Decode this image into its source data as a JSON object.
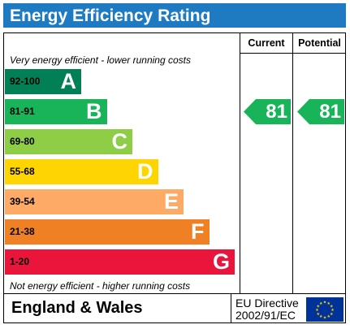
{
  "header": {
    "title": "Energy Efficiency Rating"
  },
  "columns": {
    "current": "Current",
    "potential": "Potential"
  },
  "notes": {
    "top": "Very energy efficient - lower running costs",
    "bottom": "Not energy efficient - higher running costs"
  },
  "footer": {
    "country": "England & Wales",
    "directive_line1": "EU Directive",
    "directive_line2": "2002/91/EC",
    "flag_icon": "eu-flag-icon"
  },
  "chart_data": {
    "type": "bar",
    "title": "Energy Efficiency Rating",
    "bands": [
      {
        "letter": "A",
        "range": "92-100",
        "color": "#008054",
        "text_color": "#000000"
      },
      {
        "letter": "B",
        "range": "81-91",
        "color": "#19b459",
        "text_color": "#000000"
      },
      {
        "letter": "C",
        "range": "69-80",
        "color": "#8dce46",
        "text_color": "#000000"
      },
      {
        "letter": "D",
        "range": "55-68",
        "color": "#ffd500",
        "text_color": "#000000"
      },
      {
        "letter": "E",
        "range": "39-54",
        "color": "#fcaa65",
        "text_color": "#000000"
      },
      {
        "letter": "F",
        "range": "21-38",
        "color": "#ef8023",
        "text_color": "#000000"
      },
      {
        "letter": "G",
        "range": "1-20",
        "color": "#e9153b",
        "text_color": "#000000"
      }
    ],
    "current": {
      "value": "81",
      "band": "B",
      "color": "#19b459"
    },
    "potential": {
      "value": "81",
      "band": "B",
      "color": "#19b459"
    }
  }
}
